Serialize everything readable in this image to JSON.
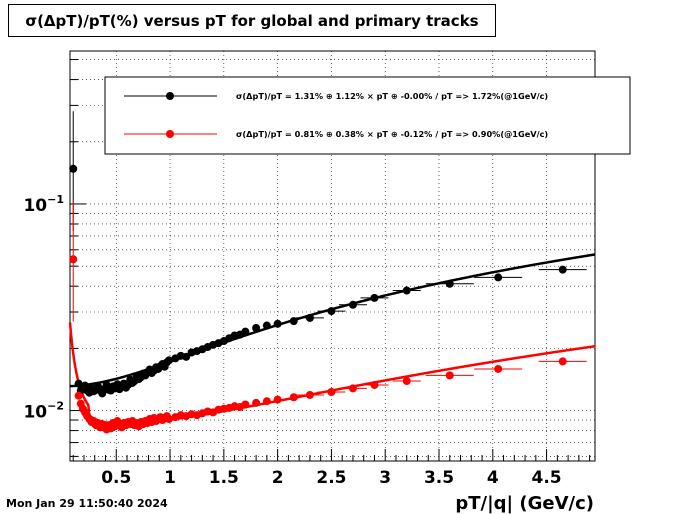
{
  "timestamp": "Mon Jan 29 11:50:40 2024",
  "chart_data": {
    "type": "scatter",
    "title": "σ(ΔpT)/pT(%) versus pT for global and primary tracks",
    "xlabel": "pT/|q| (GeV/c)",
    "ylabel": "",
    "xlim": [
      0.07,
      4.95
    ],
    "ylim": [
      0.0057,
      0.55
    ],
    "y_scale": "log",
    "grid": true,
    "legend_position": "top-right",
    "x_ticks": [
      {
        "value": 0.5,
        "label": "0.5"
      },
      {
        "value": 1,
        "label": "1"
      },
      {
        "value": 1.5,
        "label": "1.5"
      },
      {
        "value": 2,
        "label": "2"
      },
      {
        "value": 2.5,
        "label": "2.5"
      },
      {
        "value": 3,
        "label": "3"
      },
      {
        "value": 3.5,
        "label": "3.5"
      },
      {
        "value": 4,
        "label": "4"
      },
      {
        "value": 4.5,
        "label": "4.5"
      }
    ],
    "y_ticks": [
      {
        "value": 0.01,
        "base": "10",
        "exp": "−2"
      },
      {
        "value": 0.1,
        "base": "10",
        "exp": "−1"
      }
    ],
    "series": [
      {
        "name": "σ(ΔpT)/pT =  1.31% ⊕  1.12% × pT ⊕ -0.00% / pT =>  1.72%(@1GeV/c)",
        "color": "#000000",
        "x": [
          0.1,
          0.15,
          0.17,
          0.19,
          0.21,
          0.23,
          0.25,
          0.27,
          0.29,
          0.31,
          0.33,
          0.35,
          0.37,
          0.39,
          0.41,
          0.43,
          0.45,
          0.47,
          0.49,
          0.51,
          0.53,
          0.55,
          0.57,
          0.59,
          0.61,
          0.63,
          0.65,
          0.67,
          0.69,
          0.71,
          0.73,
          0.75,
          0.77,
          0.79,
          0.81,
          0.83,
          0.85,
          0.87,
          0.89,
          0.91,
          0.93,
          0.95,
          0.97,
          0.99,
          1.05,
          1.1,
          1.15,
          1.2,
          1.25,
          1.3,
          1.35,
          1.4,
          1.45,
          1.5,
          1.55,
          1.6,
          1.65,
          1.7,
          1.8,
          1.9,
          2.0,
          2.15,
          2.3,
          2.5,
          2.7,
          2.9,
          3.2,
          3.6,
          4.05,
          4.65
        ],
        "y": [
          0.148,
          0.0135,
          0.0125,
          0.0128,
          0.0132,
          0.0125,
          0.0122,
          0.0128,
          0.0124,
          0.0126,
          0.0131,
          0.0125,
          0.0121,
          0.0127,
          0.0133,
          0.0126,
          0.0125,
          0.0131,
          0.0128,
          0.0134,
          0.0127,
          0.0131,
          0.0135,
          0.0129,
          0.0133,
          0.0141,
          0.0136,
          0.0139,
          0.0146,
          0.0142,
          0.0145,
          0.0151,
          0.0148,
          0.0153,
          0.0158,
          0.0152,
          0.0156,
          0.0162,
          0.0159,
          0.0164,
          0.0168,
          0.0163,
          0.0171,
          0.0175,
          0.0179,
          0.0184,
          0.0182,
          0.0191,
          0.0194,
          0.0198,
          0.0203,
          0.0208,
          0.0212,
          0.0217,
          0.0224,
          0.0231,
          0.0233,
          0.0241,
          0.0251,
          0.0258,
          0.0263,
          0.0271,
          0.0281,
          0.0303,
          0.0325,
          0.0351,
          0.0381,
          0.0411,
          0.0441,
          0.0481
        ]
      },
      {
        "name": "σ(ΔpT)/pT =  0.81% ⊕  0.38% × pT ⊕ -0.12% / pT =>  0.90%(@1GeV/c)",
        "color": "#ff0000",
        "x": [
          0.1,
          0.15,
          0.17,
          0.19,
          0.21,
          0.23,
          0.25,
          0.27,
          0.29,
          0.31,
          0.33,
          0.35,
          0.37,
          0.39,
          0.41,
          0.43,
          0.45,
          0.47,
          0.49,
          0.51,
          0.53,
          0.55,
          0.57,
          0.59,
          0.61,
          0.63,
          0.65,
          0.67,
          0.69,
          0.71,
          0.73,
          0.75,
          0.77,
          0.79,
          0.81,
          0.83,
          0.85,
          0.87,
          0.89,
          0.91,
          0.93,
          0.95,
          0.97,
          0.99,
          1.05,
          1.1,
          1.15,
          1.2,
          1.25,
          1.3,
          1.35,
          1.4,
          1.45,
          1.5,
          1.55,
          1.6,
          1.65,
          1.7,
          1.8,
          1.9,
          2.0,
          2.15,
          2.3,
          2.5,
          2.7,
          2.9,
          3.2,
          3.6,
          4.05,
          4.65
        ],
        "y": [
          0.054,
          0.0118,
          0.0108,
          0.0102,
          0.0098,
          0.0094,
          0.0091,
          0.0088,
          0.0089,
          0.0085,
          0.0087,
          0.0083,
          0.0086,
          0.0084,
          0.0081,
          0.0085,
          0.0082,
          0.0087,
          0.0084,
          0.0089,
          0.0086,
          0.0083,
          0.0087,
          0.0085,
          0.0088,
          0.0086,
          0.0089,
          0.0085,
          0.0087,
          0.0084,
          0.0088,
          0.0086,
          0.0089,
          0.0087,
          0.0091,
          0.0088,
          0.0092,
          0.0089,
          0.0091,
          0.0093,
          0.009,
          0.0092,
          0.0094,
          0.0091,
          0.0093,
          0.0095,
          0.0094,
          0.0096,
          0.0095,
          0.0097,
          0.0099,
          0.0098,
          0.0101,
          0.0102,
          0.0103,
          0.0105,
          0.0104,
          0.0107,
          0.0109,
          0.0111,
          0.0113,
          0.0116,
          0.0119,
          0.0123,
          0.0128,
          0.0133,
          0.0139,
          0.0148,
          0.0159,
          0.0173
        ]
      }
    ]
  }
}
